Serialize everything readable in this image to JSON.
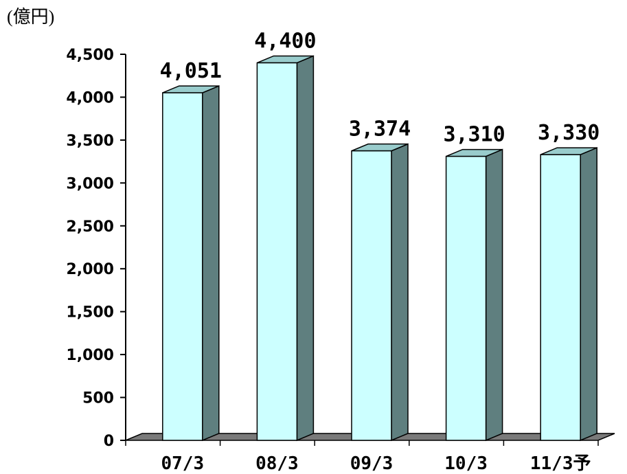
{
  "chart_data": {
    "type": "bar",
    "unit_label": "(億円)",
    "categories": [
      "07/3",
      "08/3",
      "09/3",
      "10/3",
      "11/3予"
    ],
    "values": [
      4051,
      4400,
      3374,
      3310,
      3330
    ],
    "data_labels": [
      "4,051",
      "4,400",
      "3,374",
      "3,310",
      "3,330"
    ],
    "yticks": [
      0,
      500,
      1000,
      1500,
      2000,
      2500,
      3000,
      3500,
      4000,
      4500
    ],
    "ytick_labels": [
      "0",
      "500",
      "1,000",
      "1,500",
      "2,000",
      "2,500",
      "3,000",
      "3,500",
      "4,000",
      "4,500"
    ],
    "ylim": [
      0,
      4500
    ],
    "grid": false,
    "legend": "none",
    "style": "3d-column"
  },
  "colors": {
    "bar_front": "#ccffff",
    "bar_top": "#99cccc",
    "bar_side": "#5f7f7f",
    "floor": "#7a7a7a",
    "axis": "#000000"
  }
}
